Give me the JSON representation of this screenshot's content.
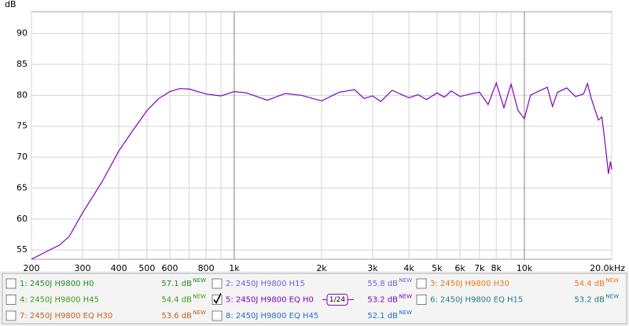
{
  "chart_data": {
    "type": "line",
    "y_label": "dB",
    "log_x": true,
    "grid": true,
    "xlim": [
      200,
      20000
    ],
    "ylim": [
      53.5,
      93.5
    ],
    "xticks": [
      200,
      300,
      400,
      500,
      600,
      800,
      {
        "value": 1000,
        "label": "1k"
      },
      {
        "value": 2000,
        "label": "2k"
      },
      {
        "value": 3000,
        "label": "3k"
      },
      {
        "value": 4000,
        "label": "4k"
      },
      {
        "value": 5000,
        "label": "5k"
      },
      {
        "value": 6000,
        "label": "6k"
      },
      {
        "value": 7000,
        "label": "7k"
      },
      {
        "value": 8000,
        "label": "8k"
      },
      {
        "value": 10000,
        "label": "10k"
      },
      {
        "value": 20000,
        "label": "20.0kHz"
      }
    ],
    "minor_xticks": [
      700,
      900,
      9000
    ],
    "yticks": [
      55,
      60,
      65,
      70,
      75,
      80,
      85,
      90
    ],
    "x": [
      200,
      220,
      250,
      270,
      300,
      350,
      400,
      450,
      500,
      550,
      600,
      650,
      700,
      800,
      900,
      1000,
      1100,
      1300,
      1500,
      1700,
      2000,
      2300,
      2600,
      2800,
      3000,
      3200,
      3500,
      3700,
      4000,
      4300,
      4600,
      5000,
      5300,
      5600,
      6000,
      6500,
      7000,
      7500,
      8000,
      8500,
      9000,
      9500,
      10000,
      10500,
      11000,
      12000,
      12500,
      13000,
      14000,
      15000,
      16000,
      16500,
      17000,
      18000,
      18500,
      19000,
      19500,
      19800,
      20000
    ],
    "series": [
      {
        "color": "#8000c0",
        "values": [
          53.5,
          54.5,
          55.8,
          57.2,
          61,
          66,
          71,
          74.5,
          77.5,
          79.5,
          80.6,
          81.1,
          81,
          80.2,
          79.9,
          80.6,
          80.4,
          79.2,
          80.3,
          80,
          79.1,
          80.5,
          80.9,
          79.5,
          79.9,
          79,
          80.8,
          80.3,
          79.6,
          80.1,
          79.3,
          80.4,
          79.7,
          80.7,
          79.8,
          80.2,
          80.5,
          78.5,
          82,
          78,
          81.8,
          77.6,
          76.2,
          80,
          80.5,
          81.3,
          78.2,
          80.5,
          81.2,
          79.8,
          80.2,
          81.9,
          79.5,
          76,
          76.5,
          72,
          67.3,
          69.3,
          68
        ]
      }
    ]
  },
  "traces": [
    {
      "label": "1: 2450J H9800 H0",
      "level": "57.1 dB",
      "badge": "NEW",
      "color": "#1e8a1e",
      "checked": false
    },
    {
      "label": "2: 2450J H9800 H15",
      "level": "55.8 dB",
      "badge": "NEW",
      "color": "#6666dd",
      "checked": false
    },
    {
      "label": "3: 2450J H9800 H30",
      "level": "54.4 dB",
      "badge": "NEW",
      "color": "#e07a1a",
      "checked": false
    },
    {
      "label": "4: 2450J H9800 H45",
      "level": "54.4 dB",
      "badge": "NEW",
      "color": "#3c9a14",
      "checked": false
    },
    {
      "label": "5: 2450J H9800 EQ H0",
      "level": "53.2 dB",
      "badge": "NEW",
      "color": "#8000c0",
      "checked": true,
      "smoothing": "1/24"
    },
    {
      "label": "6: 2450J H9800 EQ H15",
      "level": "53.2 dB",
      "badge": "NEW",
      "color": "#1e8080",
      "checked": false
    },
    {
      "label": "7: 2450J H9800 EQ H30",
      "level": "53.6 dB",
      "badge": "NEW",
      "color": "#c0601e",
      "checked": false
    },
    {
      "label": "8: 2450J H9800 EQ H45",
      "level": "52.1 dB",
      "badge": "NEW",
      "color": "#2070d0",
      "checked": false
    }
  ]
}
